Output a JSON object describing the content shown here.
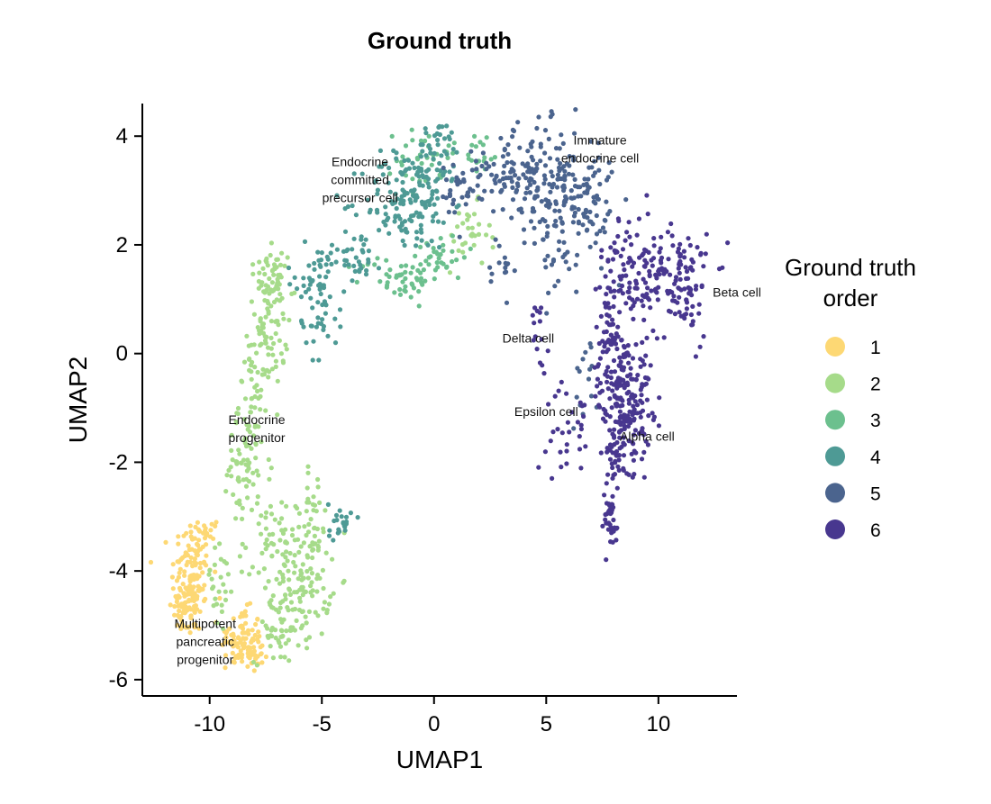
{
  "chart_data": {
    "type": "scatter",
    "title": "Ground truth",
    "xlabel": "UMAP1",
    "ylabel": "UMAP2",
    "xlim": [
      -13,
      13.5
    ],
    "ylim": [
      -6.3,
      4.6
    ],
    "xticks": [
      -10,
      -5,
      0,
      5,
      10
    ],
    "yticks": [
      -6,
      -4,
      -2,
      0,
      2,
      4
    ],
    "xtick_labels": [
      "-10",
      "-5",
      "0",
      "5",
      "10"
    ],
    "ytick_labels": [
      "-6",
      "-4",
      "-2",
      "0",
      "2",
      "4"
    ],
    "grid": false,
    "legend": {
      "title_lines": [
        "Ground truth",
        "order"
      ],
      "placement": "right",
      "entries": [
        {
          "label": "1",
          "color": "#FDD874"
        },
        {
          "label": "2",
          "color": "#A6DB8A"
        },
        {
          "label": "3",
          "color": "#6CC08E"
        },
        {
          "label": "4",
          "color": "#4E9A95"
        },
        {
          "label": "5",
          "color": "#4B648E"
        },
        {
          "label": "6",
          "color": "#48378F"
        }
      ]
    },
    "annotations": [
      {
        "lines": [
          "Endocrine",
          "committed",
          "precursor cell"
        ],
        "x": -3.3,
        "y": 3.45
      },
      {
        "lines": [
          "Immature",
          "endocrine cell"
        ],
        "x": 7.4,
        "y": 3.85
      },
      {
        "lines": [
          "Beta cell"
        ],
        "x": 13.5,
        "y": 1.05
      },
      {
        "lines": [
          "Delta cell"
        ],
        "x": 4.2,
        "y": 0.2
      },
      {
        "lines": [
          "Epsilon cell"
        ],
        "x": 5.0,
        "y": -1.15
      },
      {
        "lines": [
          "Alpha cell"
        ],
        "x": 9.5,
        "y": -1.6
      },
      {
        "lines": [
          "Endocrine",
          "progenitor"
        ],
        "x": -7.9,
        "y": -1.3
      },
      {
        "lines": [
          "Multipotent",
          "pancreatic",
          "progenitor"
        ],
        "x": -10.2,
        "y": -5.05
      }
    ],
    "series": [
      {
        "name": "1",
        "color": "#FDD874",
        "clusters": [
          {
            "cx": -10.8,
            "cy": -4.1,
            "sx": 0.45,
            "sy": 0.55,
            "n": 130
          },
          {
            "cx": -11.1,
            "cy": -4.7,
            "sx": 0.3,
            "sy": 0.25,
            "n": 40
          },
          {
            "cx": -8.6,
            "cy": -5.2,
            "sx": 0.45,
            "sy": 0.25,
            "n": 70
          },
          {
            "cx": -8.2,
            "cy": -5.55,
            "sx": 0.3,
            "sy": 0.15,
            "n": 40
          },
          {
            "cx": -10.0,
            "cy": -3.2,
            "sx": 0.25,
            "sy": 0.2,
            "n": 15
          }
        ]
      },
      {
        "name": "2",
        "color": "#A6DB8A",
        "clusters": [
          {
            "cx": -7.4,
            "cy": 0.6,
            "sx": 0.45,
            "sy": 0.6,
            "n": 90
          },
          {
            "cx": -7.2,
            "cy": 1.4,
            "sx": 0.35,
            "sy": 0.25,
            "n": 30
          },
          {
            "cx": -8.0,
            "cy": -0.9,
            "sx": 0.35,
            "sy": 0.5,
            "n": 50
          },
          {
            "cx": -8.4,
            "cy": -2.2,
            "sx": 0.6,
            "sy": 0.5,
            "n": 50
          },
          {
            "cx": -5.8,
            "cy": -4.1,
            "sx": 0.6,
            "sy": 0.6,
            "n": 130
          },
          {
            "cx": -7.4,
            "cy": -3.6,
            "sx": 0.6,
            "sy": 0.5,
            "n": 50
          },
          {
            "cx": -9.6,
            "cy": -4.3,
            "sx": 0.4,
            "sy": 0.5,
            "n": 25
          },
          {
            "cx": -7.0,
            "cy": -5.1,
            "sx": 0.5,
            "sy": 0.3,
            "n": 40
          },
          {
            "cx": -5.3,
            "cy": -2.8,
            "sx": 0.3,
            "sy": 0.3,
            "n": 20
          },
          {
            "cx": 1.5,
            "cy": 2.15,
            "sx": 0.5,
            "sy": 0.3,
            "n": 30
          }
        ]
      },
      {
        "name": "3",
        "color": "#6CC08E",
        "clusters": [
          {
            "cx": -1.5,
            "cy": 1.4,
            "sx": 0.9,
            "sy": 0.2,
            "n": 50
          },
          {
            "cx": 0.3,
            "cy": 1.8,
            "sx": 0.6,
            "sy": 0.2,
            "n": 30
          },
          {
            "cx": -0.5,
            "cy": 3.6,
            "sx": 0.6,
            "sy": 0.3,
            "n": 35
          },
          {
            "cx": 1.8,
            "cy": 3.7,
            "sx": 0.7,
            "sy": 0.2,
            "n": 20
          }
        ]
      },
      {
        "name": "4",
        "color": "#4E9A95",
        "clusters": [
          {
            "cx": -1.2,
            "cy": 2.8,
            "sx": 1.0,
            "sy": 0.45,
            "n": 140
          },
          {
            "cx": 0.2,
            "cy": 3.6,
            "sx": 0.5,
            "sy": 0.35,
            "n": 50
          },
          {
            "cx": -3.6,
            "cy": 1.85,
            "sx": 0.7,
            "sy": 0.25,
            "n": 40
          },
          {
            "cx": -5.4,
            "cy": 1.3,
            "sx": 0.6,
            "sy": 0.35,
            "n": 40
          },
          {
            "cx": -5.0,
            "cy": 0.6,
            "sx": 0.5,
            "sy": 0.35,
            "n": 25
          },
          {
            "cx": -4.2,
            "cy": -3.1,
            "sx": 0.25,
            "sy": 0.2,
            "n": 22
          }
        ]
      },
      {
        "name": "5",
        "color": "#4B648E",
        "clusters": [
          {
            "cx": 5.0,
            "cy": 3.2,
            "sx": 1.2,
            "sy": 0.5,
            "n": 160
          },
          {
            "cx": 6.8,
            "cy": 2.7,
            "sx": 0.7,
            "sy": 0.5,
            "n": 70
          },
          {
            "cx": 3.2,
            "cy": 3.3,
            "sx": 0.6,
            "sy": 0.3,
            "n": 40
          },
          {
            "cx": 1.3,
            "cy": 3.0,
            "sx": 0.6,
            "sy": 0.3,
            "n": 35
          },
          {
            "cx": 3.0,
            "cy": 1.5,
            "sx": 0.3,
            "sy": 0.4,
            "n": 15
          },
          {
            "cx": 5.6,
            "cy": 1.8,
            "sx": 0.5,
            "sy": 0.4,
            "n": 20
          },
          {
            "cx": 6.7,
            "cy": -0.5,
            "sx": 0.3,
            "sy": 0.4,
            "n": 15
          }
        ]
      },
      {
        "name": "6",
        "color": "#48378F",
        "clusters": [
          {
            "cx": 8.5,
            "cy": -0.8,
            "sx": 0.6,
            "sy": 0.6,
            "n": 200
          },
          {
            "cx": 10.5,
            "cy": 1.4,
            "sx": 0.9,
            "sy": 0.55,
            "n": 120
          },
          {
            "cx": 8.6,
            "cy": 1.6,
            "sx": 0.6,
            "sy": 0.5,
            "n": 70
          },
          {
            "cx": 7.9,
            "cy": 0.3,
            "sx": 0.4,
            "sy": 0.5,
            "n": 50
          },
          {
            "cx": 8.1,
            "cy": -2.0,
            "sx": 0.3,
            "sy": 0.35,
            "n": 30
          },
          {
            "cx": 7.8,
            "cy": -3.1,
            "sx": 0.25,
            "sy": 0.3,
            "n": 35
          },
          {
            "cx": 6.0,
            "cy": -1.4,
            "sx": 0.5,
            "sy": 0.4,
            "n": 30
          },
          {
            "cx": 4.7,
            "cy": 0.5,
            "sx": 0.2,
            "sy": 0.4,
            "n": 15
          },
          {
            "cx": 11.4,
            "cy": 0.9,
            "sx": 0.4,
            "sy": 0.3,
            "n": 25
          }
        ]
      }
    ]
  }
}
